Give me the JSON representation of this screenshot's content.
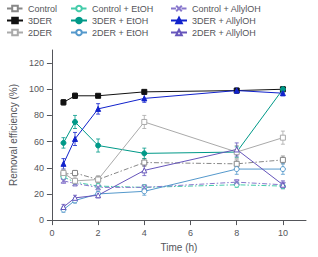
{
  "chart_data": {
    "type": "line",
    "xlabel": "Time (h)",
    "ylabel": "Removal efficiency (%)",
    "x": [
      0.5,
      1,
      2,
      4,
      8,
      10
    ],
    "series": [
      {
        "name": "Control",
        "color": "#888888",
        "values": [
          35,
          36,
          31,
          44,
          43,
          46
        ],
        "yerr": [
          3,
          2,
          2,
          3,
          3,
          3
        ],
        "marker": "square-open",
        "line_style": "dashdot"
      },
      {
        "name": "Control + EtOH",
        "color": "#44ccaa",
        "values": [
          33,
          29,
          26,
          25,
          27,
          26
        ],
        "yerr": [
          2,
          2,
          2,
          2,
          2,
          2
        ],
        "marker": "circle-open",
        "line_style": "dashdot"
      },
      {
        "name": "Control + AllylOH",
        "color": "#8877cc",
        "values": [
          30,
          28,
          25,
          25,
          29,
          27
        ],
        "yerr": [
          2,
          2,
          2,
          2,
          2,
          2
        ],
        "marker": "x",
        "line_style": "dashdot"
      },
      {
        "name": "3DER",
        "color": "#111111",
        "values": [
          90,
          95,
          95,
          98,
          99,
          100
        ],
        "yerr": [
          2,
          2,
          1,
          1,
          1,
          1
        ],
        "marker": "square",
        "line_style": "solid"
      },
      {
        "name": "3DER + EtOH",
        "color": "#009988",
        "values": [
          59,
          75,
          57,
          51,
          52,
          100
        ],
        "yerr": [
          4,
          5,
          5,
          4,
          4,
          2
        ],
        "marker": "circle",
        "line_style": "solid"
      },
      {
        "name": "3DER + AllylOH",
        "color": "#1122cc",
        "values": [
          43,
          62,
          85,
          93,
          99,
          97
        ],
        "yerr": [
          4,
          5,
          4,
          3,
          2,
          2
        ],
        "marker": "triangle",
        "line_style": "solid"
      },
      {
        "name": "2DER",
        "color": "#aaaaaa",
        "values": [
          36,
          30,
          31,
          75,
          52,
          63
        ],
        "yerr": [
          3,
          3,
          3,
          5,
          5,
          5
        ],
        "marker": "square-open",
        "line_style": "solid"
      },
      {
        "name": "2DER + EtOH",
        "color": "#5599cc",
        "values": [
          8,
          15,
          20,
          22,
          39,
          39
        ],
        "yerr": [
          2,
          2,
          2,
          3,
          4,
          4
        ],
        "marker": "circle-open",
        "line_style": "solid"
      },
      {
        "name": "2DER + AllylOH",
        "color": "#6655bb",
        "values": [
          10,
          17,
          19,
          38,
          54,
          27
        ],
        "yerr": [
          2,
          2,
          2,
          4,
          5,
          3
        ],
        "marker": "triangle-open",
        "line_style": "solid"
      }
    ],
    "xlim": [
      0,
      11
    ],
    "xticks": [
      0,
      2,
      4,
      6,
      8,
      10
    ],
    "ylim": [
      0,
      130
    ],
    "yticks": [
      0,
      20,
      40,
      60,
      80,
      100,
      120
    ],
    "grid": false,
    "legend": "upper left"
  }
}
